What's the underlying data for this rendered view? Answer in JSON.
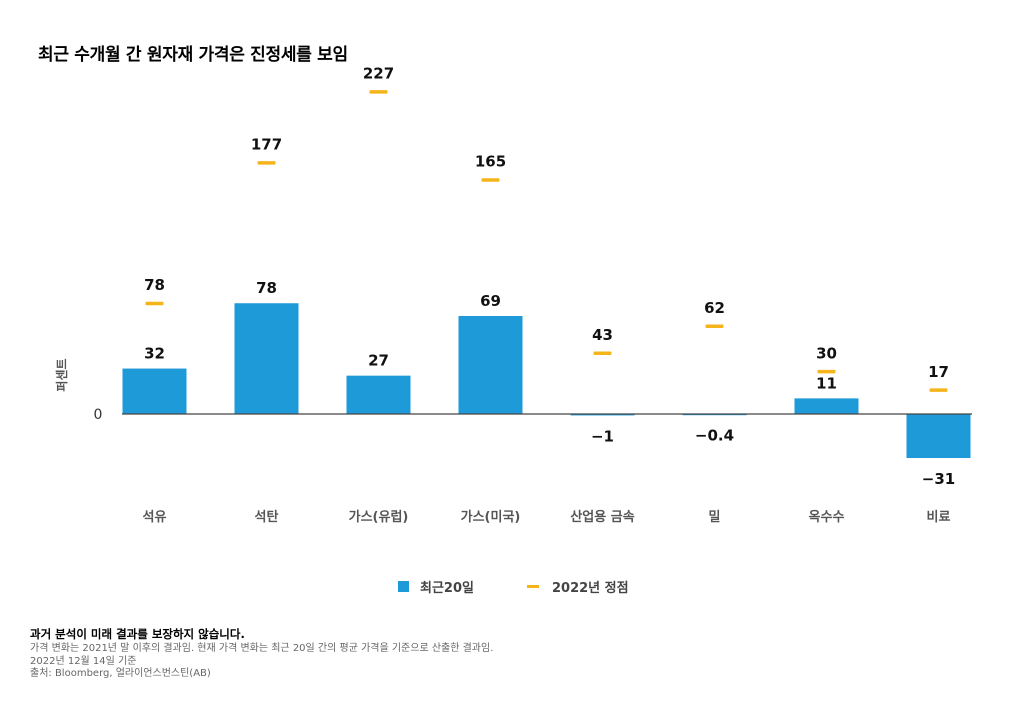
{
  "title": "최근 수개월 간 원자재 가격은 진정세를 보임",
  "chart_data": {
    "type": "bar",
    "title": "최근 수개월 간 원자재 가격은 진정세를 보임",
    "ylabel": "퍼센트",
    "xlabel": "",
    "ytick": "0",
    "ylim": [
      -45,
      250
    ],
    "categories": [
      "석유",
      "석탄",
      "가스(유럽)",
      "가스(미국)",
      "산업용 금속",
      "밀",
      "옥수수",
      "비료"
    ],
    "series": [
      {
        "name": "최근20일",
        "type": "bar",
        "color": "#1f9ad8",
        "values": [
          32,
          78,
          27,
          69,
          -1,
          -0.4,
          11,
          -31
        ],
        "labels": [
          "32",
          "78",
          "27",
          "69",
          "−1",
          "−0.4",
          "11",
          "−31"
        ]
      },
      {
        "name": "2022년 정점",
        "type": "marker",
        "color": "#f5b41a",
        "values": [
          78,
          177,
          227,
          165,
          43,
          62,
          30,
          17
        ],
        "labels": [
          "78",
          "177",
          "227",
          "165",
          "43",
          "62",
          "30",
          "17"
        ]
      }
    ],
    "legend": {
      "position": "bottom-center",
      "recent": "최근20일",
      "peak": "2022년 정점"
    },
    "grid": false
  },
  "footer": {
    "disclaimer": "과거 분석이 미래 결과를 보장하지 않습니다.",
    "notes": [
      "가격 변화는 2021년 말 이후의 결과임. 현재 가격 변화는 최근 20일 간의 평균 가격을 기준으로 산출한 결과임.",
      "2022년 12월 14일 기준",
      "출처: Bloomberg, 얼라이언스번스틴(AB)"
    ]
  }
}
